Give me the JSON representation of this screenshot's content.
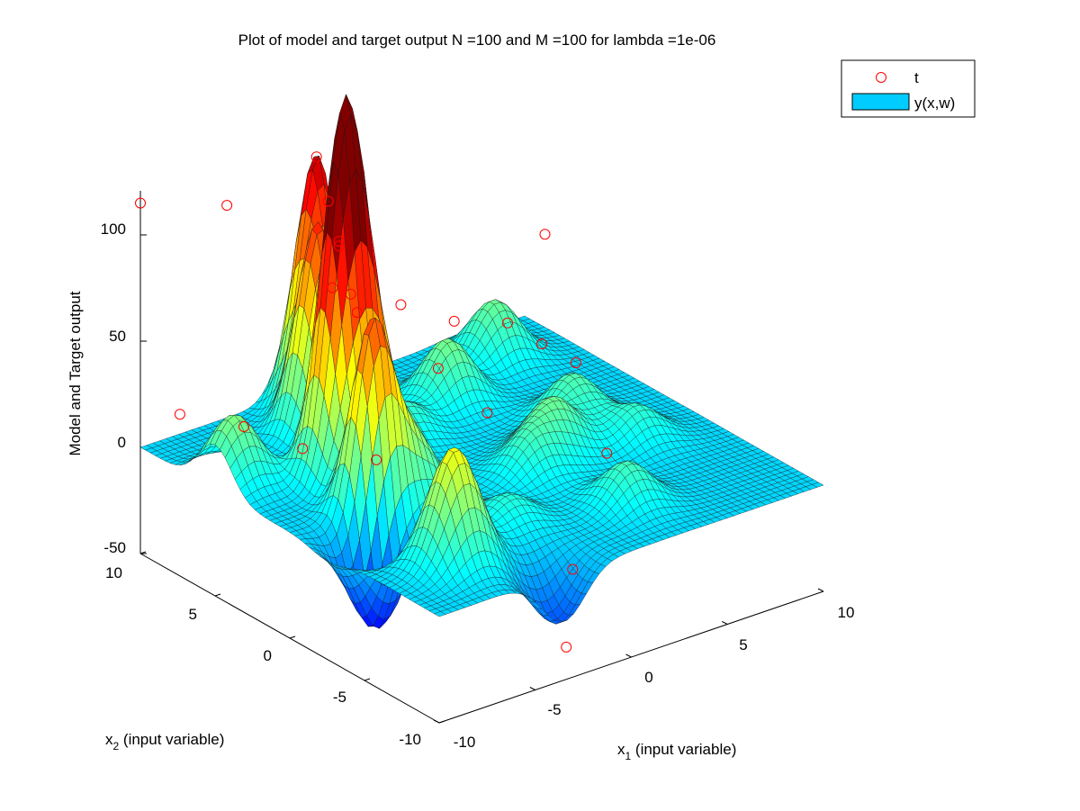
{
  "chart_data": {
    "type": "surface3d",
    "title": "Plot of model and target output N =100 and M =100 for lambda =1e-06",
    "xlabel": "x",
    "xlabel_sub": "1",
    "xlabel_rest": " (input variable)",
    "ylabel": "x",
    "ylabel_sub": "2",
    "ylabel_rest": " (input variable)",
    "zlabel": "Model and Target output",
    "xlim": [
      -10,
      10
    ],
    "ylim": [
      -10,
      10
    ],
    "zlim": [
      -50,
      120
    ],
    "x_ticks": [
      "-10",
      "-5",
      "0",
      "5",
      "10"
    ],
    "y_ticks": [
      "-10",
      "-5",
      "0",
      "5",
      "10"
    ],
    "z_ticks": [
      "-50",
      "0",
      "50",
      "100"
    ],
    "colormap": "jet",
    "legend": {
      "placement": "top-right",
      "entries": [
        {
          "label": "t",
          "marker": "circle",
          "color": "#ff0000"
        },
        {
          "label": "y(x,w)",
          "marker": "patch",
          "color": "#00ccff"
        }
      ]
    },
    "surface_peaks": [
      {
        "x": -6.5,
        "y": -1.0,
        "z": 98
      },
      {
        "x": -5.5,
        "y": 2.5,
        "z": 110
      },
      {
        "x": -4.5,
        "y": 3.0,
        "z": 90
      },
      {
        "x": -3.5,
        "y": 6.5,
        "z": 97
      },
      {
        "x": -2.0,
        "y": 8.5,
        "z": 118
      },
      {
        "x": -6.5,
        "y": -6.5,
        "z": 55
      },
      {
        "x": -9.0,
        "y": 5.0,
        "z": 32
      },
      {
        "x": -4.5,
        "y": -1.0,
        "z": 32
      },
      {
        "x": -4.0,
        "y": 1.5,
        "z": 40
      },
      {
        "x": -1.0,
        "y": 4.0,
        "z": 17
      },
      {
        "x": 2.5,
        "y": 5.5,
        "z": 30
      },
      {
        "x": 1.0,
        "y": -2.0,
        "z": 18
      },
      {
        "x": 3.0,
        "y": -1.0,
        "z": 25
      },
      {
        "x": 5.5,
        "y": 1.0,
        "z": 22
      },
      {
        "x": 6.5,
        "y": 7.5,
        "z": 28
      },
      {
        "x": -2.5,
        "y": -5.0,
        "z": 14
      },
      {
        "x": 2.5,
        "y": -6.5,
        "z": 20
      },
      {
        "x": 6.5,
        "y": -2.0,
        "z": 16
      },
      {
        "x": -7.5,
        "y": -2.5,
        "z": -50
      },
      {
        "x": -3.5,
        "y": -9.5,
        "z": -25
      }
    ],
    "target_points": [
      {
        "x": -10,
        "y": 10,
        "z": 115
      },
      {
        "x": -5.5,
        "y": 10,
        "z": 100
      },
      {
        "x": -9.5,
        "y": 8,
        "z": 22
      },
      {
        "x": -8.5,
        "y": 5,
        "z": 25
      },
      {
        "x": -7,
        "y": 3,
        "z": 18
      },
      {
        "x": -5.5,
        "y": 2.5,
        "z": 113
      },
      {
        "x": -4.5,
        "y": 3,
        "z": 83
      },
      {
        "x": -3.5,
        "y": 5.5,
        "z": 73
      },
      {
        "x": -2,
        "y": 8.5,
        "z": 118
      },
      {
        "x": -1,
        "y": 9,
        "z": 92
      },
      {
        "x": -2,
        "y": 7,
        "z": 82
      },
      {
        "x": -5.5,
        "y": 0,
        "z": 20
      },
      {
        "x": 0.5,
        "y": 9,
        "z": 35
      },
      {
        "x": 2,
        "y": 8,
        "z": 38
      },
      {
        "x": 2,
        "y": 5.5,
        "z": 18
      },
      {
        "x": 4,
        "y": 7,
        "z": 28
      },
      {
        "x": 3,
        "y": 3.5,
        "z": 2
      },
      {
        "x": 6,
        "y": 6,
        "z": 25
      },
      {
        "x": 7,
        "y": 5,
        "z": 16
      },
      {
        "x": 9.5,
        "y": 8,
        "z": 48
      },
      {
        "x": 8,
        "y": 4,
        "z": 8
      },
      {
        "x": 6.5,
        "y": 0,
        "z": -14
      },
      {
        "x": -3,
        "y": -9.5,
        "z": -38
      },
      {
        "x": -1.5,
        "y": -8,
        "z": -12
      }
    ]
  }
}
